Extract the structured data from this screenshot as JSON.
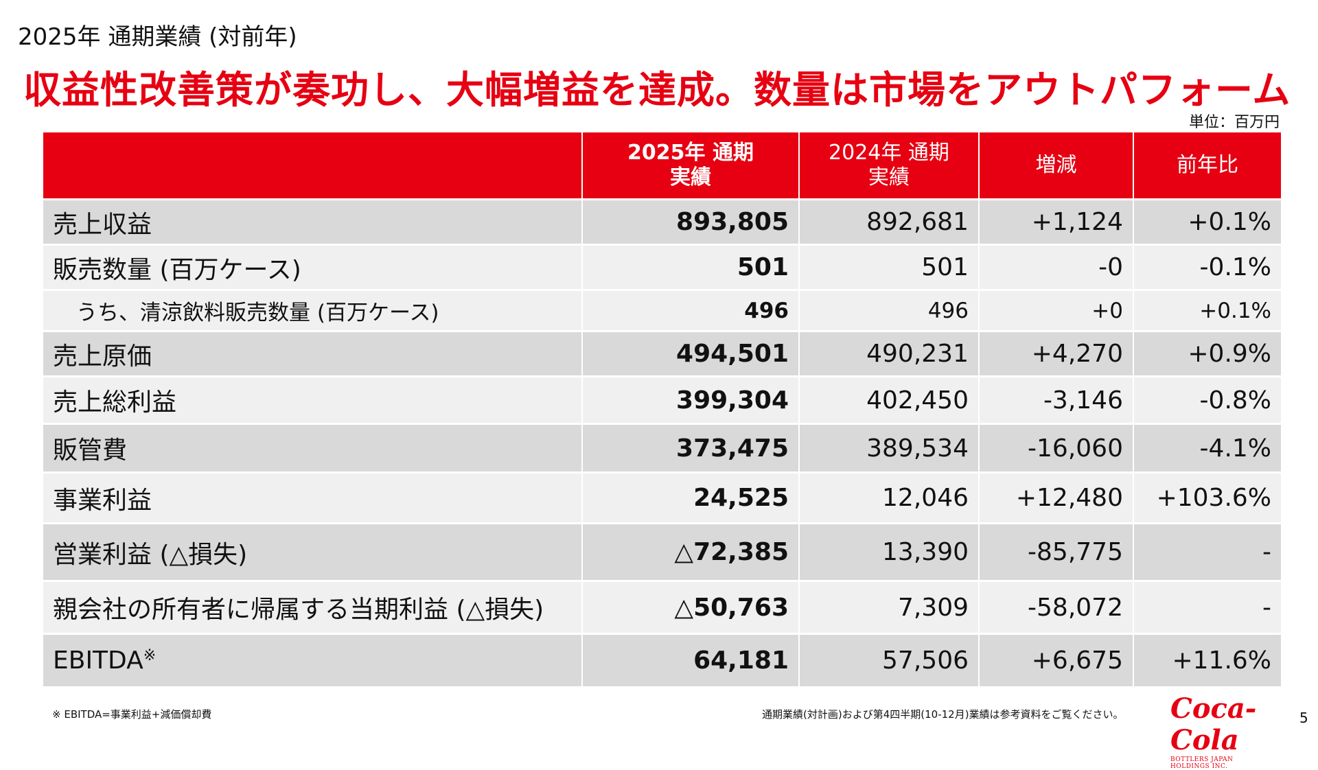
{
  "header": {
    "slide_label": "2025年 通期業績 (対前年)",
    "headline": "収益性改善策が奏功し、大幅増益を達成。数量は市場をアウトパフォーム",
    "unit": "単位：百万円"
  },
  "table": {
    "columns": {
      "fy2025_line1": "2025年 通期",
      "fy2025_line2": "実績",
      "fy2024_line1": "2024年 通期",
      "fy2024_line2": "実績",
      "change": "増減",
      "yoy": "前年比"
    },
    "rows": [
      {
        "label": "売上収益",
        "fy2025": "893,805",
        "fy2024": "892,681",
        "change": "+1,124",
        "yoy": "+0.1%"
      },
      {
        "label": "販売数量 (百万ケース)",
        "fy2025": "501",
        "fy2024": "501",
        "change": "-0",
        "yoy": "-0.1%"
      },
      {
        "label": "うち、清涼飲料販売数量 (百万ケース)",
        "fy2025": "496",
        "fy2024": "496",
        "change": "+0",
        "yoy": "+0.1%"
      },
      {
        "label": "売上原価",
        "fy2025": "494,501",
        "fy2024": "490,231",
        "change": "+4,270",
        "yoy": "+0.9%"
      },
      {
        "label": "売上総利益",
        "fy2025": "399,304",
        "fy2024": "402,450",
        "change": "-3,146",
        "yoy": "-0.8%"
      },
      {
        "label": "販管費",
        "fy2025": "373,475",
        "fy2024": "389,534",
        "change": "-16,060",
        "yoy": "-4.1%"
      },
      {
        "label": "事業利益",
        "fy2025": "24,525",
        "fy2024": "12,046",
        "change": "+12,480",
        "yoy": "+103.6%"
      },
      {
        "label": "営業利益 (△損失)",
        "fy2025": "△72,385",
        "fy2024": "13,390",
        "change": "-85,775",
        "yoy": "-"
      },
      {
        "label": "親会社の所有者に帰属する当期利益 (△損失)",
        "fy2025": "△50,763",
        "fy2024": "7,309",
        "change": "-58,072",
        "yoy": "-"
      },
      {
        "label": "EBITDA",
        "label_mark": "※",
        "fy2025": "64,181",
        "fy2024": "57,506",
        "change": "+6,675",
        "yoy": "+11.6%"
      }
    ]
  },
  "footer": {
    "note": "※ EBITDA=事業利益+減価償却費",
    "reference": "通期業績(対計画)および第4四半期(10-12月)業績は参考資料をご覧ください。",
    "logo_text": "Coca-Cola",
    "logo_subtext": "BOTTLERS JAPAN HOLDINGS INC.",
    "page_number": "5"
  }
}
